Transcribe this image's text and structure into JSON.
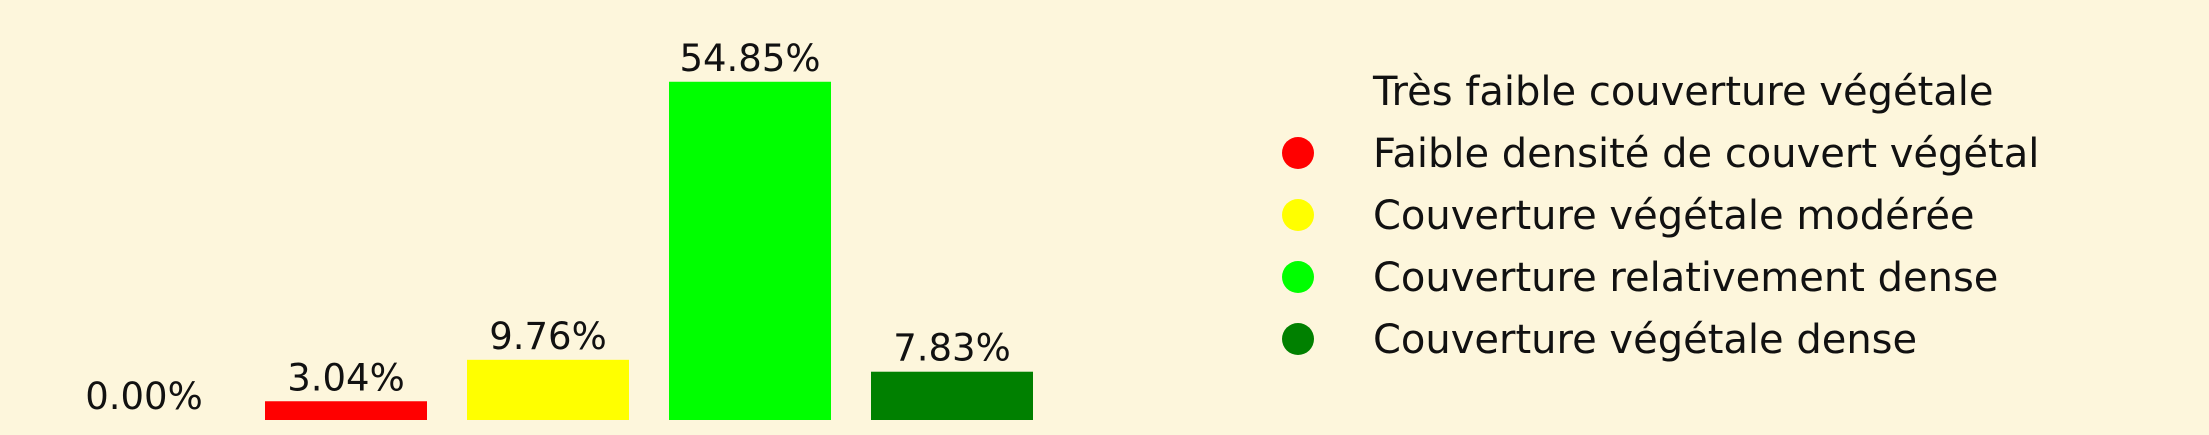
{
  "background": "#fdf6dc",
  "chart_data": {
    "type": "bar",
    "categories": [
      "Très faible couverture végétale",
      "Faible densité de couvert végétal",
      "Couverture végétale modérée",
      "Couverture relativement dense",
      "Couverture végétale dense"
    ],
    "values": [
      0.0,
      3.04,
      9.76,
      54.85,
      7.83
    ],
    "value_labels": [
      "0.00%",
      "3.04%",
      "9.76%",
      "54.85%",
      "7.83%"
    ],
    "colors": [
      "#fdf6dc",
      "#ff0000",
      "#ffff00",
      "#00ff00",
      "#008000"
    ],
    "title": "",
    "xlabel": "",
    "ylabel": "",
    "ylim": [
      0,
      60
    ],
    "grid": false,
    "axes_visible": false,
    "legend": {
      "placement": "right",
      "entries": [
        {
          "label": "Très faible couverture végétale",
          "color": "#fdf6dc"
        },
        {
          "label": "Faible densité de couvert végétal",
          "color": "#ff0000"
        },
        {
          "label": "Couverture végétale modérée",
          "color": "#ffff00"
        },
        {
          "label": "Couverture relativement dense",
          "color": "#00ff00"
        },
        {
          "label": "Couverture végétale dense",
          "color": "#008000"
        }
      ]
    }
  }
}
